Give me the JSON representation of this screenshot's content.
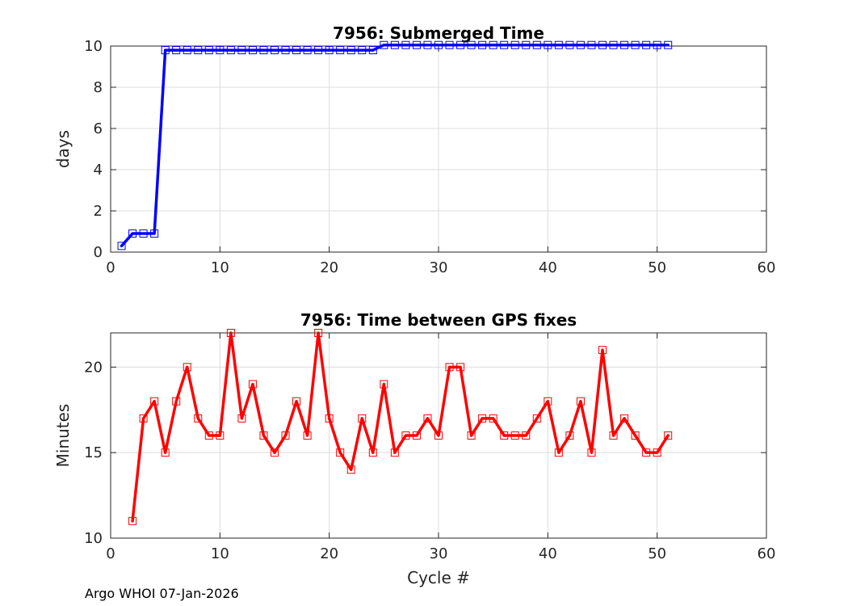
{
  "footer": "Argo WHOI 07-Jan-2026",
  "chart_data": [
    {
      "type": "line",
      "title": "7956: Submerged Time",
      "xlabel": "",
      "ylabel": "days",
      "xlim": [
        0,
        60
      ],
      "ylim": [
        0,
        10
      ],
      "xticks": [
        0,
        10,
        20,
        30,
        40,
        50,
        60
      ],
      "yticks": [
        0,
        2,
        4,
        6,
        8,
        10
      ],
      "grid": true,
      "color": "#0000ff",
      "marker": "square",
      "series": [
        {
          "x": [
            1,
            2,
            3,
            4,
            5,
            6,
            7,
            8,
            9,
            10,
            11,
            12,
            13,
            14,
            15,
            16,
            17,
            18,
            19,
            20,
            21,
            22,
            23,
            24,
            25,
            26,
            27,
            28,
            29,
            30,
            31,
            32,
            33,
            34,
            35,
            36,
            37,
            38,
            39,
            40,
            41,
            42,
            43,
            44,
            45,
            46,
            47,
            48,
            49,
            50,
            51
          ],
          "values": [
            0.3,
            0.9,
            0.9,
            0.9,
            9.8,
            9.8,
            9.8,
            9.8,
            9.8,
            9.8,
            9.8,
            9.8,
            9.8,
            9.8,
            9.8,
            9.8,
            9.8,
            9.8,
            9.8,
            9.8,
            9.8,
            9.8,
            9.8,
            9.8,
            10.05,
            10.05,
            10.05,
            10.05,
            10.05,
            10.05,
            10.05,
            10.05,
            10.05,
            10.05,
            10.05,
            10.05,
            10.05,
            10.05,
            10.05,
            10.05,
            10.05,
            10.05,
            10.05,
            10.05,
            10.05,
            10.05,
            10.05,
            10.05,
            10.05,
            10.05,
            10.05
          ]
        }
      ]
    },
    {
      "type": "line",
      "title": "7956: Time between GPS fixes",
      "xlabel": "Cycle #",
      "ylabel": "Minutes",
      "xlim": [
        0,
        60
      ],
      "ylim": [
        10,
        22
      ],
      "xticks": [
        0,
        10,
        20,
        30,
        40,
        50,
        60
      ],
      "yticks": [
        10,
        15,
        20
      ],
      "grid": true,
      "color": "#ff0000",
      "marker": "square",
      "series": [
        {
          "x": [
            2,
            3,
            4,
            5,
            6,
            7,
            8,
            9,
            10,
            11,
            12,
            13,
            14,
            15,
            16,
            17,
            18,
            19,
            20,
            21,
            22,
            23,
            24,
            25,
            26,
            27,
            28,
            29,
            30,
            31,
            32,
            33,
            34,
            35,
            36,
            37,
            38,
            39,
            40,
            41,
            42,
            43,
            44,
            45,
            46,
            47,
            48,
            49,
            50,
            51
          ],
          "values": [
            11,
            17,
            18,
            15,
            18,
            20,
            17,
            16,
            16,
            22,
            17,
            19,
            16,
            15,
            16,
            18,
            16,
            22,
            17,
            15,
            14,
            17,
            15,
            19,
            15,
            16,
            16,
            17,
            16,
            20,
            20,
            16,
            17,
            17,
            16,
            16,
            16,
            17,
            18,
            15,
            16,
            18,
            15,
            21,
            16,
            17,
            16,
            15,
            15,
            16
          ]
        }
      ]
    }
  ]
}
